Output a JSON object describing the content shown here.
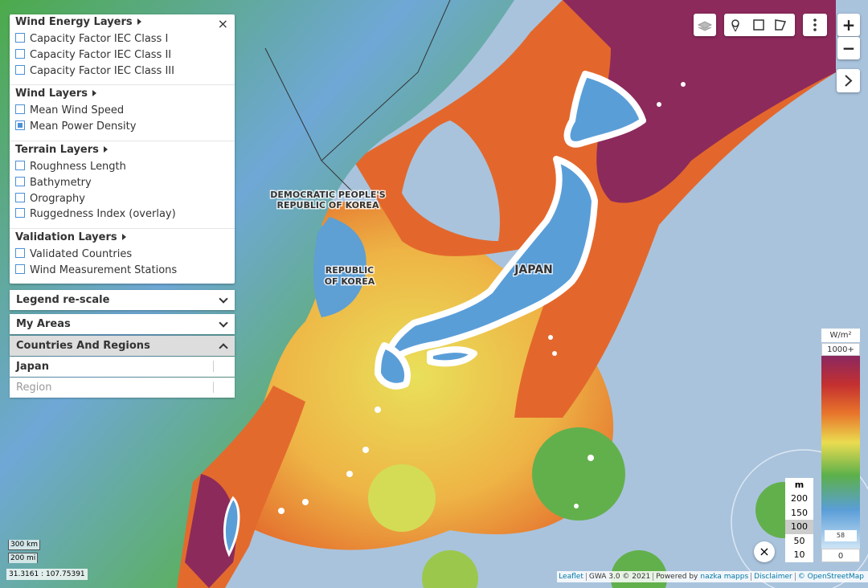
{
  "panel": {
    "groups": [
      {
        "title": "Wind Energy Layers",
        "items": [
          {
            "label": "Capacity Factor IEC Class I",
            "checked": false
          },
          {
            "label": "Capacity Factor IEC Class II",
            "checked": false
          },
          {
            "label": "Capacity Factor IEC Class III",
            "checked": false
          }
        ]
      },
      {
        "title": "Wind Layers",
        "items": [
          {
            "label": "Mean Wind Speed",
            "checked": false
          },
          {
            "label": "Mean Power Density",
            "checked": true
          }
        ]
      },
      {
        "title": "Terrain Layers",
        "items": [
          {
            "label": "Roughness Length",
            "checked": false
          },
          {
            "label": "Bathymetry",
            "checked": false
          },
          {
            "label": "Orography",
            "checked": false
          },
          {
            "label": "Ruggedness Index (overlay)",
            "checked": false
          }
        ]
      },
      {
        "title": "Validation Layers",
        "items": [
          {
            "label": "Validated Countries",
            "checked": false
          },
          {
            "label": "Wind Measurement Stations",
            "checked": false
          }
        ]
      }
    ],
    "close": "×",
    "sections": [
      "Legend re-scale",
      "My Areas",
      "Countries And Regions"
    ],
    "selects": [
      "Japan",
      "Region"
    ]
  },
  "map_labels": {
    "dprk": [
      "DEMOCRATIC PEOPLE'S",
      "REPUBLIC OF KOREA"
    ],
    "rok": [
      "REPUBLIC",
      "OF KOREA"
    ],
    "japan": "JAPAN"
  },
  "zoom": {
    "in": "+",
    "out": "−"
  },
  "legend": {
    "unit": "W/m²",
    "max": "1000+",
    "min": "0",
    "marker": "58"
  },
  "height": {
    "unit": "m",
    "options": [
      "200",
      "150",
      "100",
      "50",
      "10"
    ],
    "selected": "100",
    "close": "×"
  },
  "scale": {
    "km": "300 km",
    "mi": "200 mi"
  },
  "coords": "31.3161 : 107.75391",
  "attribution": [
    {
      "text": "Leaflet",
      "link": true
    },
    {
      "text": "GWA 3.0 © 2021",
      "link": false
    },
    {
      "text": "Powered by",
      "link": false
    },
    {
      "text": "nazka mapps",
      "link": true
    },
    {
      "text": "Disclaimer",
      "link": true
    },
    {
      "text": "© OpenStreetMap",
      "link": true
    }
  ]
}
